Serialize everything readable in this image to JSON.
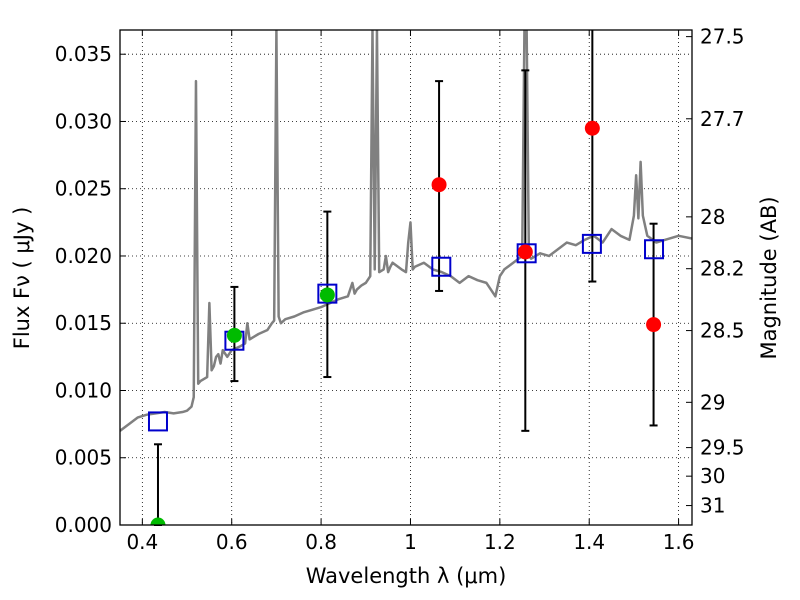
{
  "chart_data": {
    "type": "scatter",
    "title": "",
    "xlabel": "Wavelength  λ (μm)",
    "ylabel": "Flux  Fν  ( μJy )",
    "y2label": "Magnitude (AB)",
    "xlim": [
      0.35,
      1.63
    ],
    "ylim": [
      0.0,
      0.0368
    ],
    "grid": true,
    "x_ticks": [
      0.4,
      0.6,
      0.8,
      1.0,
      1.2,
      1.4,
      1.6
    ],
    "x_tick_labels": [
      "0.4",
      "0.6",
      "0.8",
      "1",
      "1.2",
      "1.4",
      "1.6"
    ],
    "y_ticks": [
      0.0,
      0.005,
      0.01,
      0.015,
      0.02,
      0.025,
      0.03,
      0.035
    ],
    "y_tick_labels": [
      "0.000",
      "0.005",
      "0.010",
      "0.015",
      "0.020",
      "0.025",
      "0.030",
      "0.035"
    ],
    "y2_ticks": [
      27.5,
      27.7,
      28,
      28.2,
      28.5,
      29,
      29.5,
      30,
      31
    ],
    "y2_tick_labels": [
      "27.5",
      "27.7",
      "28",
      "28.2",
      "28.5",
      "29",
      "29.5",
      "30",
      "31"
    ],
    "colors": {
      "model": "#808080",
      "model_photometry": "#0000cc",
      "observed_red": "#ff0000",
      "observed_green": "#00bb00",
      "errorbar": "#000000"
    },
    "model_spectrum": {
      "x": [
        0.35,
        0.37,
        0.39,
        0.41,
        0.43,
        0.45,
        0.47,
        0.49,
        0.5,
        0.51,
        0.515,
        0.52,
        0.525,
        0.53,
        0.545,
        0.55,
        0.555,
        0.56,
        0.565,
        0.57,
        0.575,
        0.58,
        0.59,
        0.6,
        0.62,
        0.63,
        0.635,
        0.64,
        0.65,
        0.66,
        0.68,
        0.69,
        0.695,
        0.7,
        0.705,
        0.71,
        0.72,
        0.74,
        0.76,
        0.78,
        0.8,
        0.82,
        0.84,
        0.86,
        0.87,
        0.875,
        0.88,
        0.89,
        0.9,
        0.91,
        0.915,
        0.92,
        0.925,
        0.93,
        0.94,
        0.945,
        0.95,
        0.955,
        0.96,
        0.98,
        0.99,
        0.995,
        1.0,
        1.005,
        1.01,
        1.03,
        1.05,
        1.07,
        1.09,
        1.11,
        1.13,
        1.15,
        1.17,
        1.19,
        1.2,
        1.21,
        1.23,
        1.25,
        1.255,
        1.26,
        1.265,
        1.27,
        1.29,
        1.31,
        1.33,
        1.35,
        1.37,
        1.39,
        1.41,
        1.43,
        1.45,
        1.47,
        1.49,
        1.5,
        1.505,
        1.51,
        1.515,
        1.52,
        1.53,
        1.55,
        1.57,
        1.6,
        1.63
      ],
      "y": [
        0.007,
        0.0075,
        0.008,
        0.0082,
        0.0083,
        0.0084,
        0.0083,
        0.0084,
        0.0085,
        0.0088,
        0.0095,
        0.033,
        0.0105,
        0.0107,
        0.011,
        0.0165,
        0.0115,
        0.0118,
        0.0125,
        0.0127,
        0.012,
        0.013,
        0.0125,
        0.013,
        0.0133,
        0.0135,
        0.015,
        0.0138,
        0.014,
        0.0142,
        0.0145,
        0.015,
        0.0152,
        0.0368,
        0.0155,
        0.015,
        0.0153,
        0.0155,
        0.0158,
        0.016,
        0.0162,
        0.0165,
        0.0168,
        0.017,
        0.018,
        0.0172,
        0.0175,
        0.0178,
        0.018,
        0.0185,
        0.0368,
        0.019,
        0.0368,
        0.0188,
        0.019,
        0.02,
        0.0188,
        0.0192,
        0.0195,
        0.019,
        0.0188,
        0.021,
        0.0225,
        0.019,
        0.0192,
        0.0195,
        0.019,
        0.0188,
        0.0185,
        0.018,
        0.0185,
        0.0182,
        0.018,
        0.017,
        0.0185,
        0.019,
        0.0195,
        0.02,
        0.0368,
        0.0368,
        0.02,
        0.0198,
        0.0202,
        0.02,
        0.0205,
        0.021,
        0.0208,
        0.0212,
        0.0215,
        0.021,
        0.022,
        0.0215,
        0.0212,
        0.023,
        0.026,
        0.0228,
        0.027,
        0.023,
        0.0215,
        0.021,
        0.0212,
        0.0215,
        0.0213
      ]
    },
    "model_photometry": {
      "name": "",
      "x": [
        0.435,
        0.606,
        0.814,
        1.069,
        1.26,
        1.406,
        1.545
      ],
      "y": [
        0.0077,
        0.0137,
        0.0172,
        0.0192,
        0.0202,
        0.0209,
        0.0205
      ]
    },
    "observations": [
      {
        "x": 0.435,
        "y": 0.0,
        "yerr_low": 0.0,
        "yerr_high": 0.006,
        "color": "green"
      },
      {
        "x": 0.606,
        "y": 0.0141,
        "yerr_low": 0.0107,
        "yerr_high": 0.0177,
        "color": "green"
      },
      {
        "x": 0.814,
        "y": 0.0171,
        "yerr_low": 0.011,
        "yerr_high": 0.0233,
        "color": "green"
      },
      {
        "x": 1.064,
        "y": 0.0253,
        "yerr_low": 0.0174,
        "yerr_high": 0.033,
        "color": "red"
      },
      {
        "x": 1.257,
        "y": 0.0203,
        "yerr_low": 0.007,
        "yerr_high": 0.0338,
        "color": "red"
      },
      {
        "x": 1.407,
        "y": 0.0295,
        "yerr_low": 0.0181,
        "yerr_high": 0.0368,
        "color": "red"
      },
      {
        "x": 1.544,
        "y": 0.0149,
        "yerr_low": 0.0074,
        "yerr_high": 0.0224,
        "color": "red"
      }
    ]
  }
}
